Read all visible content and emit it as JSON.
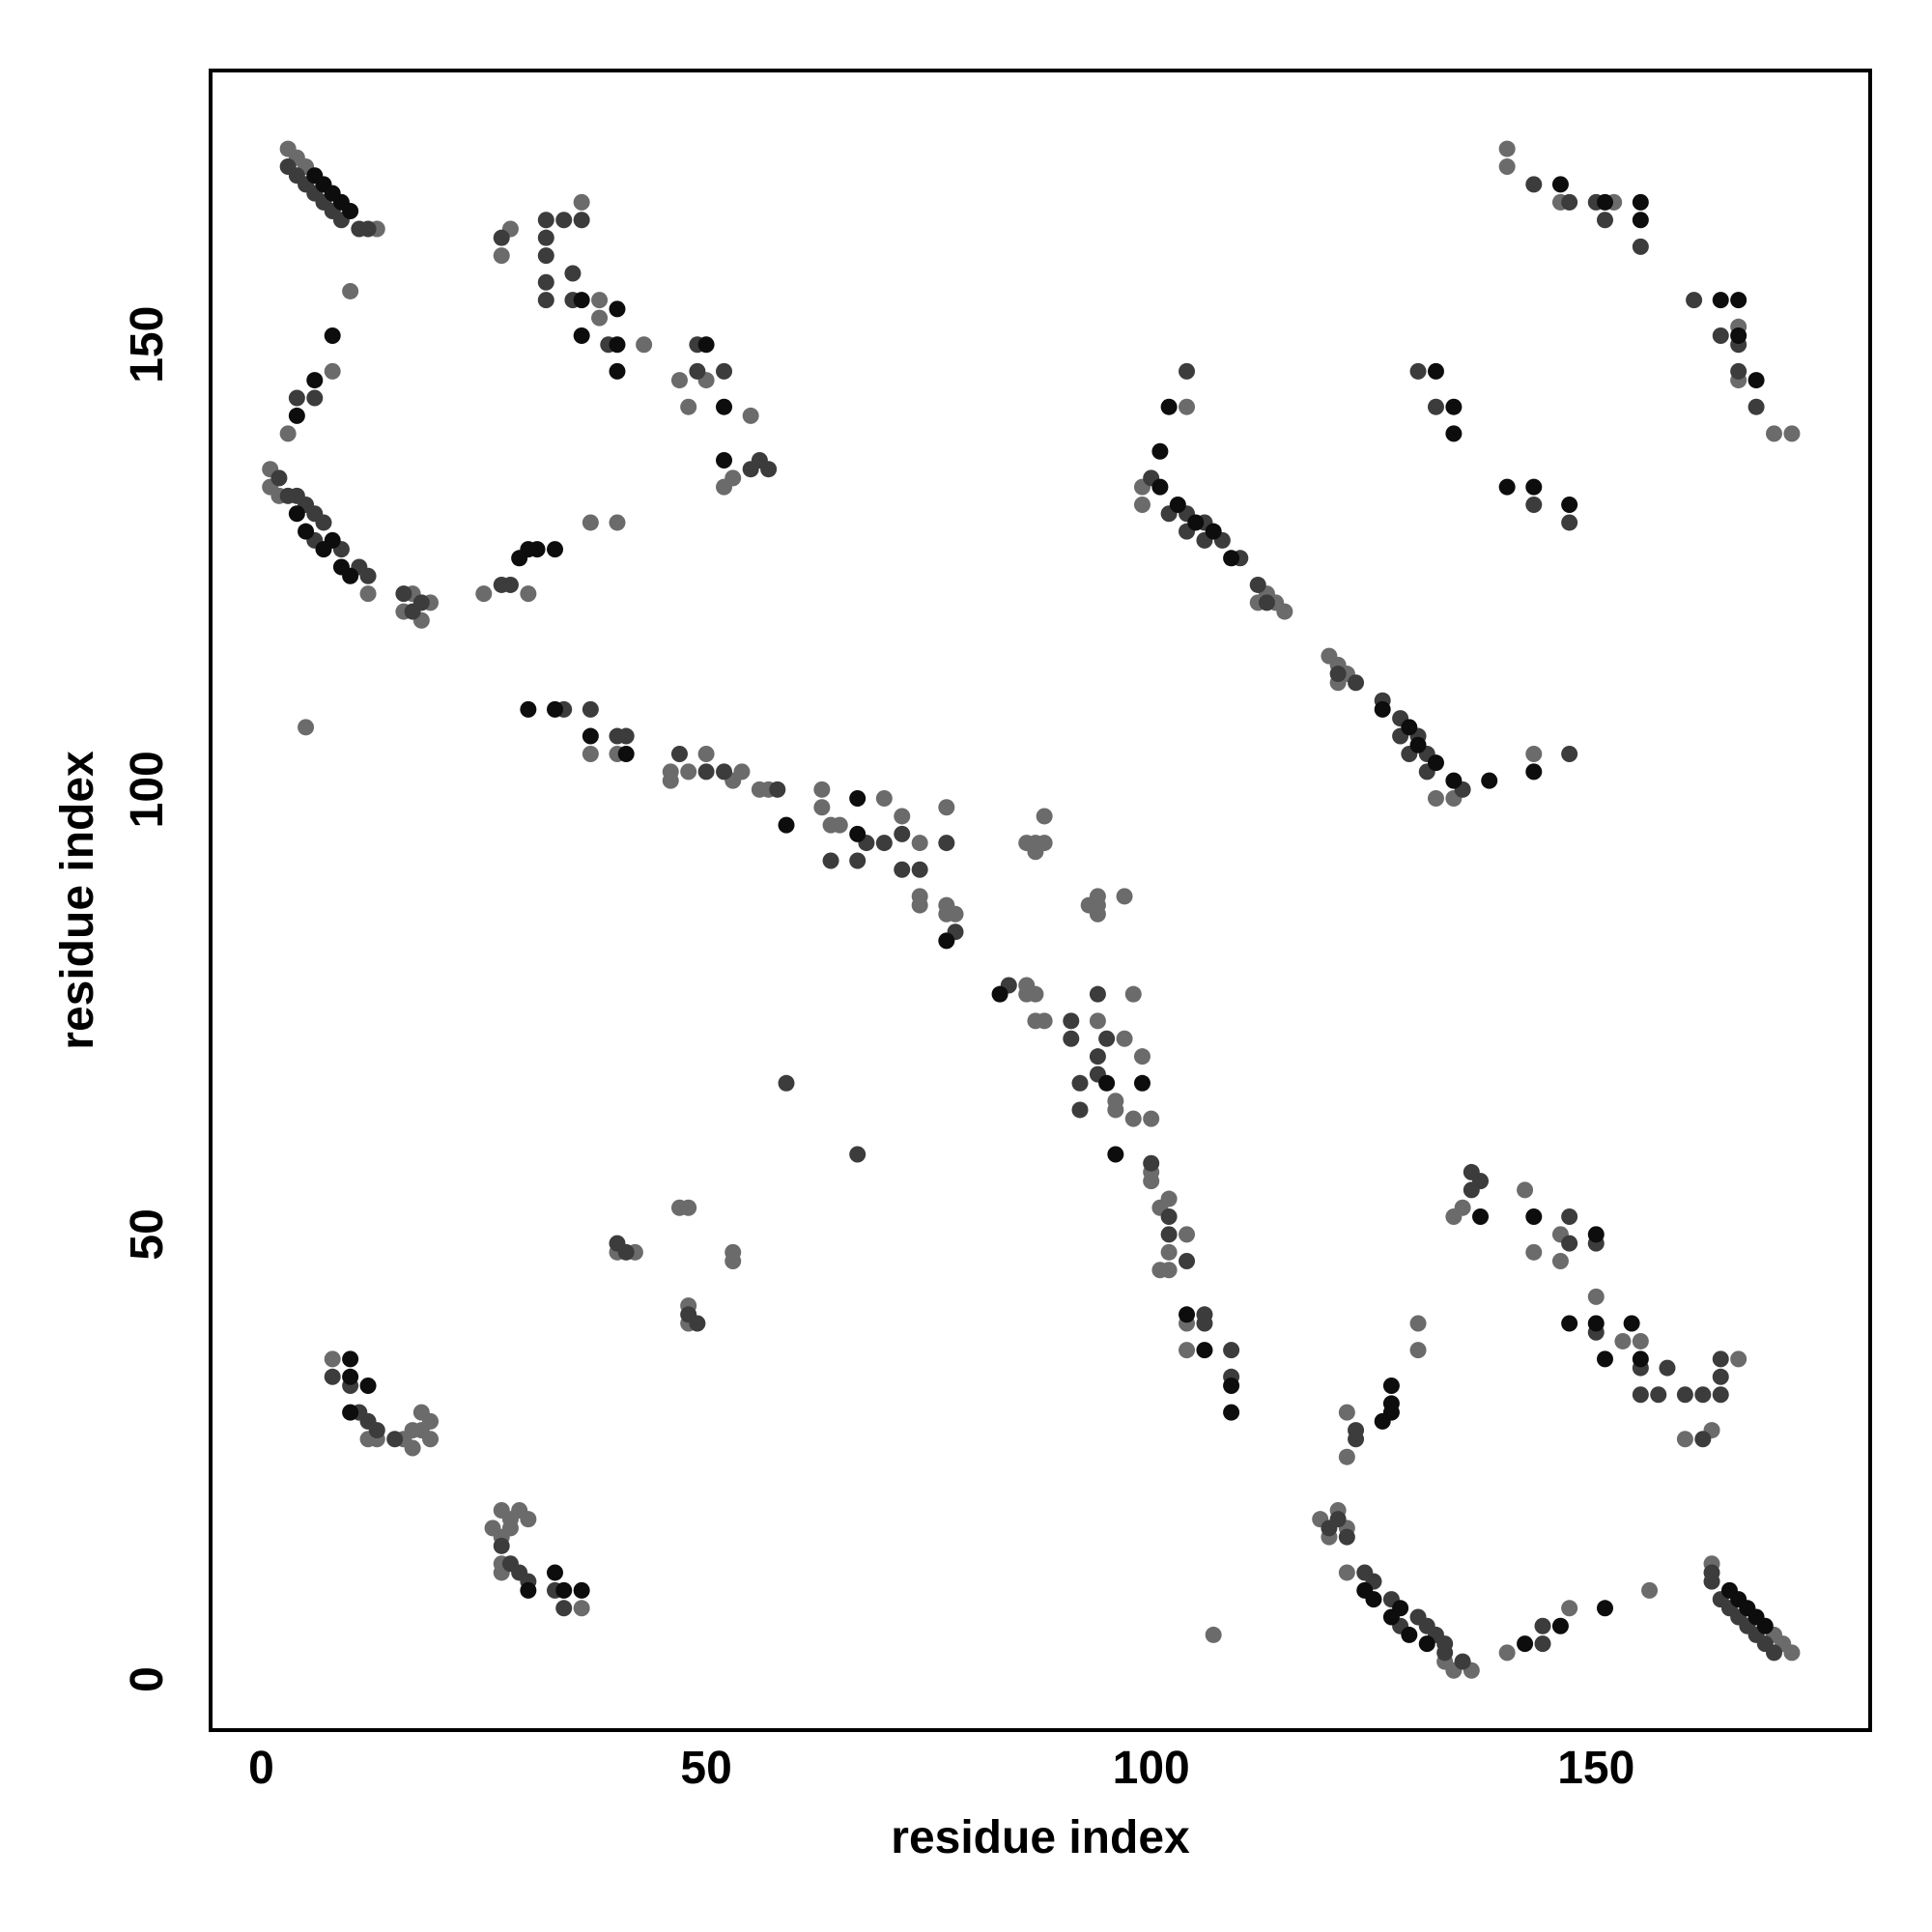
{
  "chart_data": {
    "type": "scatter",
    "x_label": "residue index",
    "y_label": "residue index",
    "xlim": [
      -5.7,
      180.8
    ],
    "ylim": [
      -5.7,
      180.8
    ],
    "xticks": [
      0,
      50,
      100,
      150
    ],
    "yticks": [
      0,
      50,
      100,
      150
    ],
    "grid": false,
    "series": [
      {
        "color": "#6b6b6b",
        "x": [
          3,
          4,
          5,
          13,
          1,
          1,
          2,
          3,
          8,
          10,
          5,
          12,
          17,
          19,
          18,
          16,
          27,
          28,
          36,
          38,
          38,
          43,
          47,
          48,
          50,
          52,
          53,
          55,
          37,
          40,
          25,
          30,
          37,
          40,
          46,
          46,
          48,
          50,
          53,
          54,
          56,
          57,
          63,
          63,
          64,
          65,
          70,
          72,
          74,
          74,
          74,
          77,
          77,
          77,
          78,
          86,
          87,
          88,
          88,
          87,
          99,
          99,
          113,
          114,
          115,
          112,
          104,
          140,
          140,
          146,
          152,
          8,
          12,
          13,
          16,
          17,
          17,
          18,
          18,
          19,
          19,
          40,
          42,
          47,
          48,
          172,
          171,
          170,
          163,
          136,
          134,
          133,
          140,
          147,
          156,
          107,
          122,
          122,
          121,
          119,
          120,
          160,
          163,
          166,
          155,
          153,
          150,
          146,
          143,
          146,
          134,
          135,
          142,
          130,
          130,
          122,
          122,
          104,
          104,
          102,
          101,
          102,
          104,
          101,
          102,
          100,
          100,
          98,
          100,
          96,
          96,
          99,
          97,
          94,
          88,
          87,
          98,
          87,
          86,
          86,
          94,
          94,
          97,
          94,
          93,
          134,
          132,
          122,
          121,
          120,
          121,
          143,
          172,
          170,
          166,
          166,
          36,
          27,
          27,
          27,
          26,
          28,
          30,
          28,
          29,
          27,
          48,
          48,
          53,
          53
        ],
        "values": [
          172,
          171,
          170,
          163,
          136,
          134,
          133,
          140,
          147,
          156,
          107,
          122,
          122,
          121,
          119,
          120,
          160,
          163,
          166,
          155,
          153,
          150,
          146,
          143,
          146,
          134,
          135,
          142,
          130,
          130,
          122,
          122,
          104,
          104,
          102,
          101,
          102,
          104,
          101,
          102,
          100,
          100,
          98,
          100,
          96,
          96,
          99,
          97,
          94,
          88,
          87,
          98,
          87,
          86,
          86,
          94,
          94,
          97,
          94,
          93,
          134,
          132,
          122,
          121,
          120,
          121,
          143,
          172,
          170,
          166,
          166,
          36,
          27,
          27,
          27,
          26,
          28,
          30,
          28,
          29,
          27,
          48,
          48,
          53,
          53,
          3,
          4,
          5,
          13,
          1,
          1,
          2,
          3,
          8,
          10,
          5,
          12,
          17,
          19,
          18,
          16,
          27,
          28,
          36,
          38,
          38,
          43,
          47,
          48,
          50,
          52,
          53,
          55,
          37,
          40,
          25,
          30,
          37,
          40,
          46,
          46,
          48,
          50,
          53,
          54,
          56,
          57,
          63,
          63,
          64,
          65,
          70,
          72,
          74,
          74,
          74,
          77,
          77,
          77,
          78,
          86,
          87,
          88,
          88,
          87,
          99,
          99,
          113,
          114,
          115,
          112,
          104,
          140,
          140,
          146,
          152,
          8,
          12,
          13,
          16,
          17,
          17,
          18,
          18,
          19,
          19,
          40,
          42,
          47,
          48
        ]
      },
      {
        "color": "#3c3c3c",
        "x": [
          3,
          4,
          5,
          6,
          7,
          8,
          9,
          11,
          12,
          2,
          3,
          4,
          5,
          6,
          6,
          7,
          9,
          11,
          12,
          16,
          17,
          18,
          4,
          6,
          27,
          32,
          32,
          32,
          32,
          32,
          34,
          35,
          35,
          36,
          39,
          49,
          49,
          52,
          56,
          57,
          55,
          28,
          27,
          34,
          37,
          40,
          41,
          47,
          50,
          52,
          58,
          59,
          64,
          67,
          68,
          70,
          72,
          72,
          74,
          78,
          77,
          100,
          102,
          104,
          104,
          106,
          106,
          108,
          110,
          112,
          113,
          104,
          130,
          132,
          143,
          147,
          150,
          151,
          155,
          8,
          10,
          11,
          12,
          13,
          15,
          40,
          41,
          170,
          169,
          168,
          167,
          166,
          165,
          164,
          163,
          163,
          135,
          133,
          133,
          132,
          131,
          128,
          130,
          127,
          125,
          124,
          122,
          120,
          121,
          144,
          144,
          162,
          164,
          162,
          160,
          157,
          155,
          164,
          158,
          155,
          164,
          150,
          150,
          147,
          147,
          137,
          136,
          136,
          123,
          123,
          109,
          109,
          106,
          106,
          104,
          102,
          102,
          100,
          67,
          92,
          92,
          94,
          94,
          95,
          91,
          91,
          84,
          94,
          135,
          131,
          131,
          129,
          130,
          128,
          128,
          126,
          123,
          121,
          147,
          147,
          143,
          168,
          166,
          166,
          164,
          161,
          34,
          33,
          30,
          29,
          28,
          27,
          49,
          48
        ],
        "values": [
          170,
          169,
          168,
          167,
          166,
          165,
          164,
          163,
          163,
          135,
          133,
          133,
          132,
          131,
          128,
          130,
          127,
          125,
          124,
          122,
          120,
          121,
          144,
          144,
          162,
          164,
          162,
          160,
          157,
          155,
          164,
          158,
          155,
          164,
          150,
          150,
          147,
          147,
          137,
          136,
          136,
          123,
          123,
          109,
          109,
          106,
          106,
          104,
          102,
          102,
          100,
          67,
          92,
          92,
          94,
          94,
          95,
          91,
          91,
          84,
          94,
          135,
          131,
          131,
          129,
          130,
          128,
          128,
          126,
          123,
          121,
          147,
          147,
          143,
          168,
          166,
          166,
          164,
          161,
          34,
          33,
          30,
          29,
          28,
          27,
          49,
          48,
          3,
          4,
          5,
          6,
          7,
          8,
          9,
          11,
          12,
          2,
          3,
          4,
          5,
          6,
          6,
          7,
          9,
          11,
          12,
          16,
          17,
          18,
          4,
          6,
          27,
          32,
          32,
          32,
          32,
          32,
          34,
          35,
          35,
          36,
          39,
          49,
          49,
          52,
          56,
          57,
          55,
          28,
          27,
          34,
          37,
          40,
          41,
          47,
          50,
          52,
          58,
          59,
          64,
          67,
          68,
          70,
          72,
          72,
          74,
          78,
          77,
          100,
          102,
          104,
          104,
          106,
          106,
          108,
          110,
          112,
          113,
          104,
          130,
          132,
          143,
          147,
          150,
          151,
          155,
          8,
          10,
          11,
          12,
          13,
          15,
          40,
          41
        ]
      },
      {
        "color": "#0d0d0d",
        "x": [
          8,
          4,
          6,
          36,
          36,
          40,
          40,
          40,
          50,
          52,
          52,
          30,
          33,
          37,
          41,
          59,
          67,
          67,
          77,
          30,
          29,
          31,
          33,
          4,
          5,
          7,
          9,
          10,
          8,
          101,
          103,
          105,
          107,
          109,
          10,
          7,
          9,
          6,
          8,
          10,
          10,
          10,
          12,
          132,
          134,
          134,
          146,
          151,
          155,
          155,
          101,
          102,
          151,
          142,
          146,
          155,
          151,
          154,
          150,
          147,
          150,
          143,
          137,
          109,
          109,
          106,
          104,
          96,
          99,
          95,
          83,
          127,
          126,
          127,
          127,
          131,
          129,
          127,
          125,
          124,
          128,
          134,
          132,
          130,
          129,
          126,
          165,
          168,
          166,
          169,
          167,
          36,
          34,
          30,
          33,
          147,
          143,
          140,
          168,
          166,
          166,
          164,
          138,
          143
        ],
        "values": [
          151,
          142,
          146,
          155,
          151,
          154,
          150,
          147,
          150,
          143,
          137,
          109,
          109,
          106,
          104,
          96,
          99,
          95,
          83,
          127,
          126,
          127,
          127,
          131,
          129,
          127,
          125,
          124,
          128,
          134,
          132,
          130,
          129,
          126,
          165,
          168,
          166,
          169,
          167,
          36,
          34,
          30,
          33,
          147,
          143,
          140,
          168,
          166,
          166,
          164,
          138,
          143,
          8,
          4,
          6,
          36,
          36,
          40,
          40,
          40,
          50,
          52,
          52,
          30,
          33,
          37,
          41,
          59,
          67,
          67,
          77,
          30,
          29,
          31,
          33,
          4,
          5,
          7,
          9,
          10,
          8,
          101,
          103,
          105,
          107,
          109,
          10,
          7,
          9,
          6,
          8,
          10,
          10,
          10,
          12,
          132,
          134,
          134,
          146,
          151,
          155,
          155,
          101,
          102
        ]
      }
    ]
  }
}
